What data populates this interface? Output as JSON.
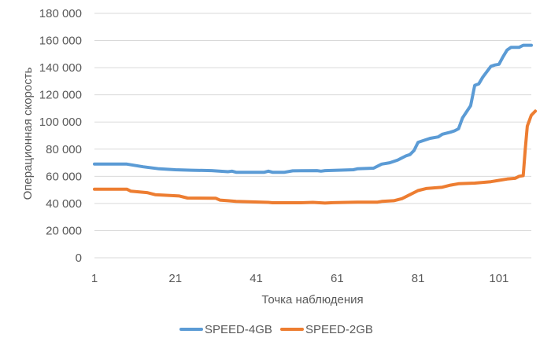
{
  "chart_data": {
    "type": "line",
    "title": "",
    "xlabel": "Точка наблюдения",
    "ylabel": "Операционная скорость",
    "x_ticks": [
      "1",
      "21",
      "41",
      "61",
      "81",
      "101"
    ],
    "y_ticks": [
      "0",
      "20 000",
      "40 000",
      "60 000",
      "80 000",
      "100 000",
      "120 000",
      "140 000",
      "160 000",
      "180 000"
    ],
    "xlim": [
      1,
      109
    ],
    "ylim": [
      0,
      180000
    ],
    "grid": "horizontal",
    "legend_position": "bottom",
    "series": [
      {
        "name": "SPEED-4GB",
        "color": "#5B9BD5",
        "points": [
          [
            1,
            69000
          ],
          [
            9,
            69000
          ],
          [
            13,
            67000
          ],
          [
            17,
            65500
          ],
          [
            21,
            64800
          ],
          [
            25,
            64500
          ],
          [
            30,
            64200
          ],
          [
            34,
            63400
          ],
          [
            35,
            63800
          ],
          [
            36,
            63000
          ],
          [
            43,
            63000
          ],
          [
            44,
            63800
          ],
          [
            45,
            63000
          ],
          [
            48,
            63000
          ],
          [
            50,
            64000
          ],
          [
            56,
            64200
          ],
          [
            57,
            63800
          ],
          [
            58,
            64200
          ],
          [
            65,
            64800
          ],
          [
            66,
            65500
          ],
          [
            70,
            66000
          ],
          [
            72,
            69000
          ],
          [
            74,
            70000
          ],
          [
            76,
            72000
          ],
          [
            78,
            75000
          ],
          [
            79,
            76000
          ],
          [
            80,
            79000
          ],
          [
            81,
            85000
          ],
          [
            82,
            86000
          ],
          [
            84,
            88000
          ],
          [
            86,
            89000
          ],
          [
            87,
            91000
          ],
          [
            89,
            92500
          ],
          [
            90,
            93500
          ],
          [
            91,
            95000
          ],
          [
            92,
            103000
          ],
          [
            94,
            112000
          ],
          [
            95,
            127000
          ],
          [
            96,
            128000
          ],
          [
            97,
            133000
          ],
          [
            99,
            141000
          ],
          [
            100,
            142000
          ],
          [
            101,
            142500
          ],
          [
            102,
            148000
          ],
          [
            103,
            153000
          ],
          [
            104,
            155000
          ],
          [
            106,
            155000
          ],
          [
            107,
            156500
          ],
          [
            109,
            156500
          ]
        ]
      },
      {
        "name": "SPEED-2GB",
        "color": "#ED7D31",
        "points": [
          [
            1,
            50500
          ],
          [
            9,
            50500
          ],
          [
            10,
            49000
          ],
          [
            14,
            48000
          ],
          [
            16,
            46500
          ],
          [
            22,
            45500
          ],
          [
            24,
            44000
          ],
          [
            31,
            43800
          ],
          [
            32,
            42500
          ],
          [
            34,
            42000
          ],
          [
            36,
            41500
          ],
          [
            44,
            40800
          ],
          [
            45,
            40500
          ],
          [
            52,
            40500
          ],
          [
            55,
            40800
          ],
          [
            58,
            40300
          ],
          [
            60,
            40600
          ],
          [
            66,
            41000
          ],
          [
            71,
            41000
          ],
          [
            72,
            41500
          ],
          [
            75,
            42000
          ],
          [
            77,
            43500
          ],
          [
            79,
            46500
          ],
          [
            81,
            49500
          ],
          [
            83,
            51000
          ],
          [
            87,
            52000
          ],
          [
            89,
            53500
          ],
          [
            91,
            54500
          ],
          [
            95,
            55000
          ],
          [
            99,
            56000
          ],
          [
            101,
            57000
          ],
          [
            103,
            58000
          ],
          [
            105,
            58500
          ],
          [
            106,
            60000
          ],
          [
            107,
            60500
          ],
          [
            107.5,
            80000
          ],
          [
            108,
            97000
          ],
          [
            109,
            105000
          ],
          [
            110,
            108000
          ]
        ]
      }
    ]
  }
}
